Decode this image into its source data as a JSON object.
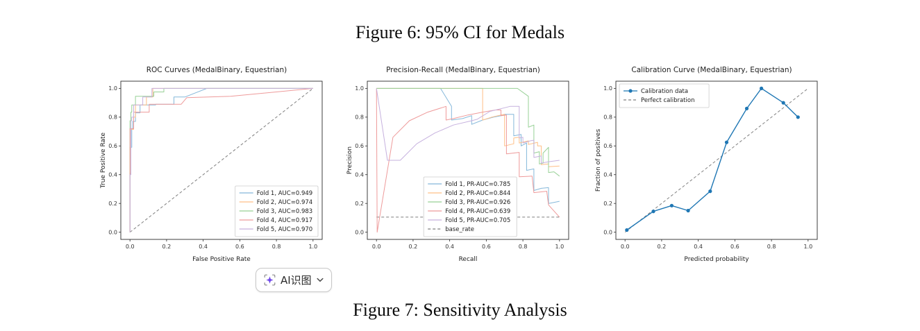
{
  "captions": {
    "figure6": "Figure 6: 95% CI for Medals",
    "figure7": "Figure 7: Sensitivity Analysis"
  },
  "ai_button": {
    "label": "AI识图",
    "icon": "sparkle-scan-icon",
    "chevron": "chevron-down-icon",
    "accent_color": "#7048e8"
  },
  "colors": {
    "fold1": "#85b8da",
    "fold2": "#ffbf86",
    "fold3": "#97d095",
    "fold4": "#ee9a9a",
    "fold5": "#c6b1de",
    "dashed_reference": "#7f7f7f",
    "calibration_blue": "#1f77b4",
    "axis": "#333333"
  },
  "chart_data": [
    {
      "type": "line",
      "title": "ROC Curves (MedalBinary, Equestrian)",
      "xlabel": "False Positive Rate",
      "ylabel": "True Positive Rate",
      "xticks": [
        0.0,
        0.2,
        0.4,
        0.6,
        0.8,
        1.0
      ],
      "yticks": [
        0.0,
        0.2,
        0.4,
        0.6,
        0.8,
        1.0
      ],
      "axis_xlim": [
        -0.05,
        1.05
      ],
      "axis_ylim": [
        -0.05,
        1.05
      ],
      "grid": false,
      "legend": {
        "anchor": "lower-right"
      },
      "series": [
        {
          "name": "chance-diagonal",
          "color": "#7f7f7f",
          "dash": true,
          "in_legend": false,
          "points": [
            [
              0,
              0
            ],
            [
              1,
              1
            ]
          ]
        },
        {
          "name": "Fold 1, AUC=0.949",
          "color": "#85b8da",
          "legend_rank": 1,
          "points": [
            [
              0,
              0
            ],
            [
              0,
              0.41
            ],
            [
              0.005,
              0.41
            ],
            [
              0.005,
              0.59
            ],
            [
              0.01,
              0.59
            ],
            [
              0.01,
              0.72
            ],
            [
              0.015,
              0.72
            ],
            [
              0.015,
              0.77
            ],
            [
              0.03,
              0.77
            ],
            [
              0.03,
              0.83
            ],
            [
              0.055,
              0.83
            ],
            [
              0.055,
              0.885
            ],
            [
              0.14,
              0.885
            ],
            [
              0.14,
              0.89
            ],
            [
              0.24,
              0.89
            ],
            [
              0.24,
              0.94
            ],
            [
              0.3,
              0.94
            ],
            [
              0.42,
              1.0
            ],
            [
              1,
              1
            ]
          ]
        },
        {
          "name": "Fold 2, AUC=0.974",
          "color": "#ffbf86",
          "legend_rank": 2,
          "points": [
            [
              0,
              0
            ],
            [
              0,
              0.59
            ],
            [
              0.005,
              0.59
            ],
            [
              0.005,
              0.715
            ],
            [
              0.02,
              0.715
            ],
            [
              0.02,
              0.8
            ],
            [
              0.03,
              0.8
            ],
            [
              0.03,
              0.885
            ],
            [
              0.09,
              0.885
            ],
            [
              0.09,
              0.94
            ],
            [
              0.125,
              0.94
            ],
            [
              0.125,
              1.0
            ],
            [
              1,
              1
            ]
          ]
        },
        {
          "name": "Fold 3, AUC=0.983",
          "color": "#97d095",
          "legend_rank": 3,
          "points": [
            [
              0,
              0
            ],
            [
              0,
              0.775
            ],
            [
              0.005,
              0.775
            ],
            [
              0.005,
              0.835
            ],
            [
              0.01,
              0.835
            ],
            [
              0.01,
              0.885
            ],
            [
              0.03,
              0.885
            ],
            [
              0.03,
              0.945
            ],
            [
              0.13,
              0.945
            ],
            [
              0.13,
              0.975
            ],
            [
              0.185,
              0.975
            ],
            [
              0.185,
              1.0
            ],
            [
              1,
              1
            ]
          ]
        },
        {
          "name": "Fold 4, AUC=0.917",
          "color": "#ee9a9a",
          "legend_rank": 4,
          "points": [
            [
              0,
              0
            ],
            [
              0,
              0.72
            ],
            [
              0.02,
              0.72
            ],
            [
              0.02,
              0.835
            ],
            [
              0.105,
              0.835
            ],
            [
              0.105,
              0.89
            ],
            [
              0.28,
              0.89
            ],
            [
              0.31,
              0.935
            ],
            [
              0.55,
              0.945
            ],
            [
              1,
              1
            ]
          ]
        },
        {
          "name": "Fold 5, AUC=0.970",
          "color": "#c6b1de",
          "legend_rank": 5,
          "points": [
            [
              0,
              0
            ],
            [
              0,
              0.4
            ],
            [
              0.005,
              0.4
            ],
            [
              0.005,
              0.775
            ],
            [
              0.01,
              0.775
            ],
            [
              0.01,
              0.8
            ],
            [
              0.02,
              0.8
            ],
            [
              0.02,
              0.885
            ],
            [
              0.07,
              0.885
            ],
            [
              0.07,
              0.94
            ],
            [
              0.12,
              0.94
            ],
            [
              0.12,
              1.0
            ],
            [
              1,
              1
            ]
          ]
        }
      ]
    },
    {
      "type": "line",
      "title": "Precision-Recall (MedalBinary, Equestrian)",
      "xlabel": "Recall",
      "ylabel": "Precision",
      "xticks": [
        0.0,
        0.2,
        0.4,
        0.6,
        0.8,
        1.0
      ],
      "yticks": [
        0.0,
        0.2,
        0.4,
        0.6,
        0.8,
        1.0
      ],
      "axis_xlim": [
        -0.05,
        1.05
      ],
      "axis_ylim": [
        -0.05,
        1.05
      ],
      "grid": false,
      "legend": {
        "anchor": "lower-center",
        "x": 0.28
      },
      "series": [
        {
          "name": "base_rate",
          "color": "#7f7f7f",
          "dash": true,
          "legend_rank": 6,
          "points": [
            [
              0,
              0.105
            ],
            [
              1,
              0.105
            ]
          ]
        },
        {
          "name": "Fold 1, PR-AUC=0.785",
          "color": "#85b8da",
          "legend_rank": 1,
          "points": [
            [
              0,
              1
            ],
            [
              0.35,
              1
            ],
            [
              0.41,
              0.875
            ],
            [
              0.41,
              0.78
            ],
            [
              0.47,
              0.79
            ],
            [
              0.52,
              0.81
            ],
            [
              0.52,
              0.75
            ],
            [
              0.58,
              0.78
            ],
            [
              0.64,
              0.8
            ],
            [
              0.7,
              0.815
            ],
            [
              0.7,
              0.82
            ],
            [
              0.75,
              0.82
            ],
            [
              0.75,
              0.67
            ],
            [
              0.79,
              0.68
            ],
            [
              0.79,
              0.6
            ],
            [
              0.82,
              0.62
            ],
            [
              0.82,
              0.43
            ],
            [
              0.86,
              0.44
            ],
            [
              0.86,
              0.29
            ],
            [
              0.9,
              0.305
            ],
            [
              0.94,
              0.31
            ],
            [
              0.94,
              0.2
            ],
            [
              1.0,
              0.215
            ]
          ]
        },
        {
          "name": "Fold 2, PR-AUC=0.844",
          "color": "#ffbf86",
          "legend_rank": 2,
          "points": [
            [
              0,
              1
            ],
            [
              0.58,
              1
            ],
            [
              0.58,
              0.78
            ],
            [
              0.63,
              0.8
            ],
            [
              0.68,
              0.815
            ],
            [
              0.7,
              0.82
            ],
            [
              0.7,
              0.6
            ],
            [
              0.75,
              0.615
            ],
            [
              0.75,
              0.655
            ],
            [
              0.78,
              0.66
            ],
            [
              0.78,
              0.62
            ],
            [
              0.83,
              0.635
            ],
            [
              0.83,
              0.61
            ],
            [
              0.88,
              0.625
            ],
            [
              0.88,
              0.6
            ],
            [
              0.9,
              0.6
            ],
            [
              0.9,
              0.47
            ],
            [
              0.94,
              0.475
            ],
            [
              0.94,
              0.455
            ],
            [
              1.0,
              0.46
            ]
          ]
        },
        {
          "name": "Fold 3, PR-AUC=0.926",
          "color": "#97d095",
          "legend_rank": 3,
          "points": [
            [
              0,
              1
            ],
            [
              0.77,
              1
            ],
            [
              0.83,
              0.945
            ],
            [
              0.83,
              0.73
            ],
            [
              0.86,
              0.745
            ],
            [
              0.86,
              0.55
            ],
            [
              0.89,
              0.56
            ],
            [
              0.89,
              0.475
            ],
            [
              0.91,
              0.48
            ],
            [
              0.91,
              0.55
            ],
            [
              0.94,
              0.59
            ],
            [
              0.94,
              0.415
            ],
            [
              0.97,
              0.42
            ],
            [
              1.0,
              0.39
            ]
          ]
        },
        {
          "name": "Fold 4, PR-AUC=0.639",
          "color": "#ee9a9a",
          "legend_rank": 4,
          "points": [
            [
              0,
              1
            ],
            [
              0.004,
              0.0
            ],
            [
              0.09,
              0.66
            ],
            [
              0.18,
              0.775
            ],
            [
              0.28,
              0.835
            ],
            [
              0.38,
              0.875
            ],
            [
              0.38,
              0.78
            ],
            [
              0.42,
              0.79
            ],
            [
              0.5,
              0.815
            ],
            [
              0.58,
              0.835
            ],
            [
              0.65,
              0.85
            ],
            [
              0.68,
              0.85
            ],
            [
              0.68,
              0.81
            ],
            [
              0.71,
              0.815
            ],
            [
              0.71,
              0.545
            ],
            [
              0.78,
              0.555
            ],
            [
              0.78,
              0.385
            ],
            [
              0.85,
              0.39
            ],
            [
              0.86,
              0.275
            ],
            [
              0.93,
              0.285
            ],
            [
              0.94,
              0.19
            ],
            [
              1.0,
              0.105
            ]
          ]
        },
        {
          "name": "Fold 5, PR-AUC=0.705",
          "color": "#c6b1de",
          "legend_rank": 5,
          "points": [
            [
              0,
              1
            ],
            [
              0.06,
              0.5
            ],
            [
              0.13,
              0.5
            ],
            [
              0.22,
              0.615
            ],
            [
              0.32,
              0.69
            ],
            [
              0.42,
              0.745
            ],
            [
              0.52,
              0.775
            ],
            [
              0.55,
              0.785
            ],
            [
              0.62,
              0.84
            ],
            [
              0.7,
              0.865
            ],
            [
              0.73,
              0.875
            ],
            [
              0.78,
              0.875
            ],
            [
              0.78,
              0.655
            ],
            [
              0.8,
              0.66
            ],
            [
              0.8,
              0.62
            ],
            [
              0.84,
              0.635
            ],
            [
              0.86,
              0.64
            ],
            [
              0.86,
              0.52
            ],
            [
              0.9,
              0.53
            ],
            [
              0.9,
              0.48
            ],
            [
              0.94,
              0.49
            ],
            [
              1.0,
              0.5
            ]
          ]
        }
      ]
    },
    {
      "type": "line",
      "title": "Calibration Curve (MedalBinary, Equestrian)",
      "xlabel": "Predicted probability",
      "ylabel": "Fraction of positives",
      "xticks": [
        0.0,
        0.2,
        0.4,
        0.6,
        0.8,
        1.0
      ],
      "yticks": [
        0.0,
        0.2,
        0.4,
        0.6,
        0.8,
        1.0
      ],
      "axis_xlim": [
        -0.05,
        1.05
      ],
      "axis_ylim": [
        -0.05,
        1.05
      ],
      "grid": false,
      "legend": {
        "anchor": "upper-left"
      },
      "series": [
        {
          "name": "Perfect calibration",
          "color": "#808080",
          "dash": true,
          "legend_rank": 2,
          "points": [
            [
              0,
              0
            ],
            [
              1,
              1
            ]
          ]
        },
        {
          "name": "Calibration data",
          "color": "#1f77b4",
          "marker": true,
          "width": 1.4,
          "legend_rank": 1,
          "points": [
            [
              0.01,
              0.015
            ],
            [
              0.155,
              0.145
            ],
            [
              0.255,
              0.185
            ],
            [
              0.345,
              0.15
            ],
            [
              0.465,
              0.285
            ],
            [
              0.555,
              0.625
            ],
            [
              0.665,
              0.86
            ],
            [
              0.745,
              1.0
            ],
            [
              0.865,
              0.9
            ],
            [
              0.945,
              0.8
            ]
          ]
        }
      ]
    }
  ]
}
